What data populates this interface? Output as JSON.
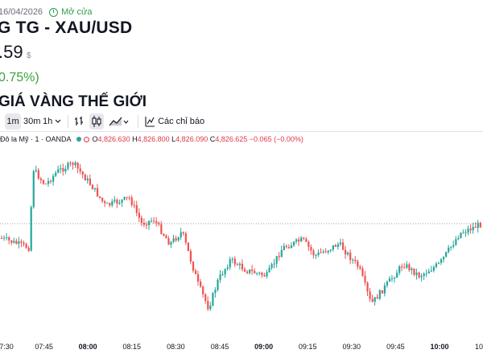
{
  "header": {
    "date": "16/04/2026",
    "market_status": "Mở cửa",
    "pair_title": "G TG - XAU/USD",
    "price": ".59",
    "currency": "$",
    "change": "0.75%)",
    "section_title": "GIÁ VÀNG THẾ GIỚI"
  },
  "toolbar": {
    "intervals": [
      "1m",
      "30m",
      "1h"
    ],
    "active_interval": "1m",
    "dropdown_icon": "chevron-down-icon",
    "icons": [
      "bar-style-icon",
      "candle-style-icon",
      "area-style-icon",
      "indicators-icon"
    ],
    "indicators_label": "Các chỉ báo"
  },
  "legend": {
    "symbol": "Đô la Mỹ · 1 · OANDA",
    "open_label": "O",
    "open": "4,826.630",
    "high_label": "H",
    "high": "4,826.800",
    "low_label": "L",
    "low": "4,826.090",
    "close_label": "C",
    "close": "4,826.625",
    "change": "−0.065 (−0.00%)"
  },
  "colors": {
    "up": "#26a69a",
    "down": "#ef5350",
    "text": "#131722",
    "accent_green": "#38a33c"
  },
  "chart_data": {
    "type": "candlestick",
    "x_tick_labels": [
      "7:30",
      "07:45",
      "08:00",
      "08:15",
      "08:30",
      "08:45",
      "09:00",
      "09:15",
      "09:30",
      "09:45",
      "10:00",
      "10"
    ],
    "x_tick_bold": [
      "08:00",
      "09:00",
      "10:00"
    ],
    "grid": false
  }
}
